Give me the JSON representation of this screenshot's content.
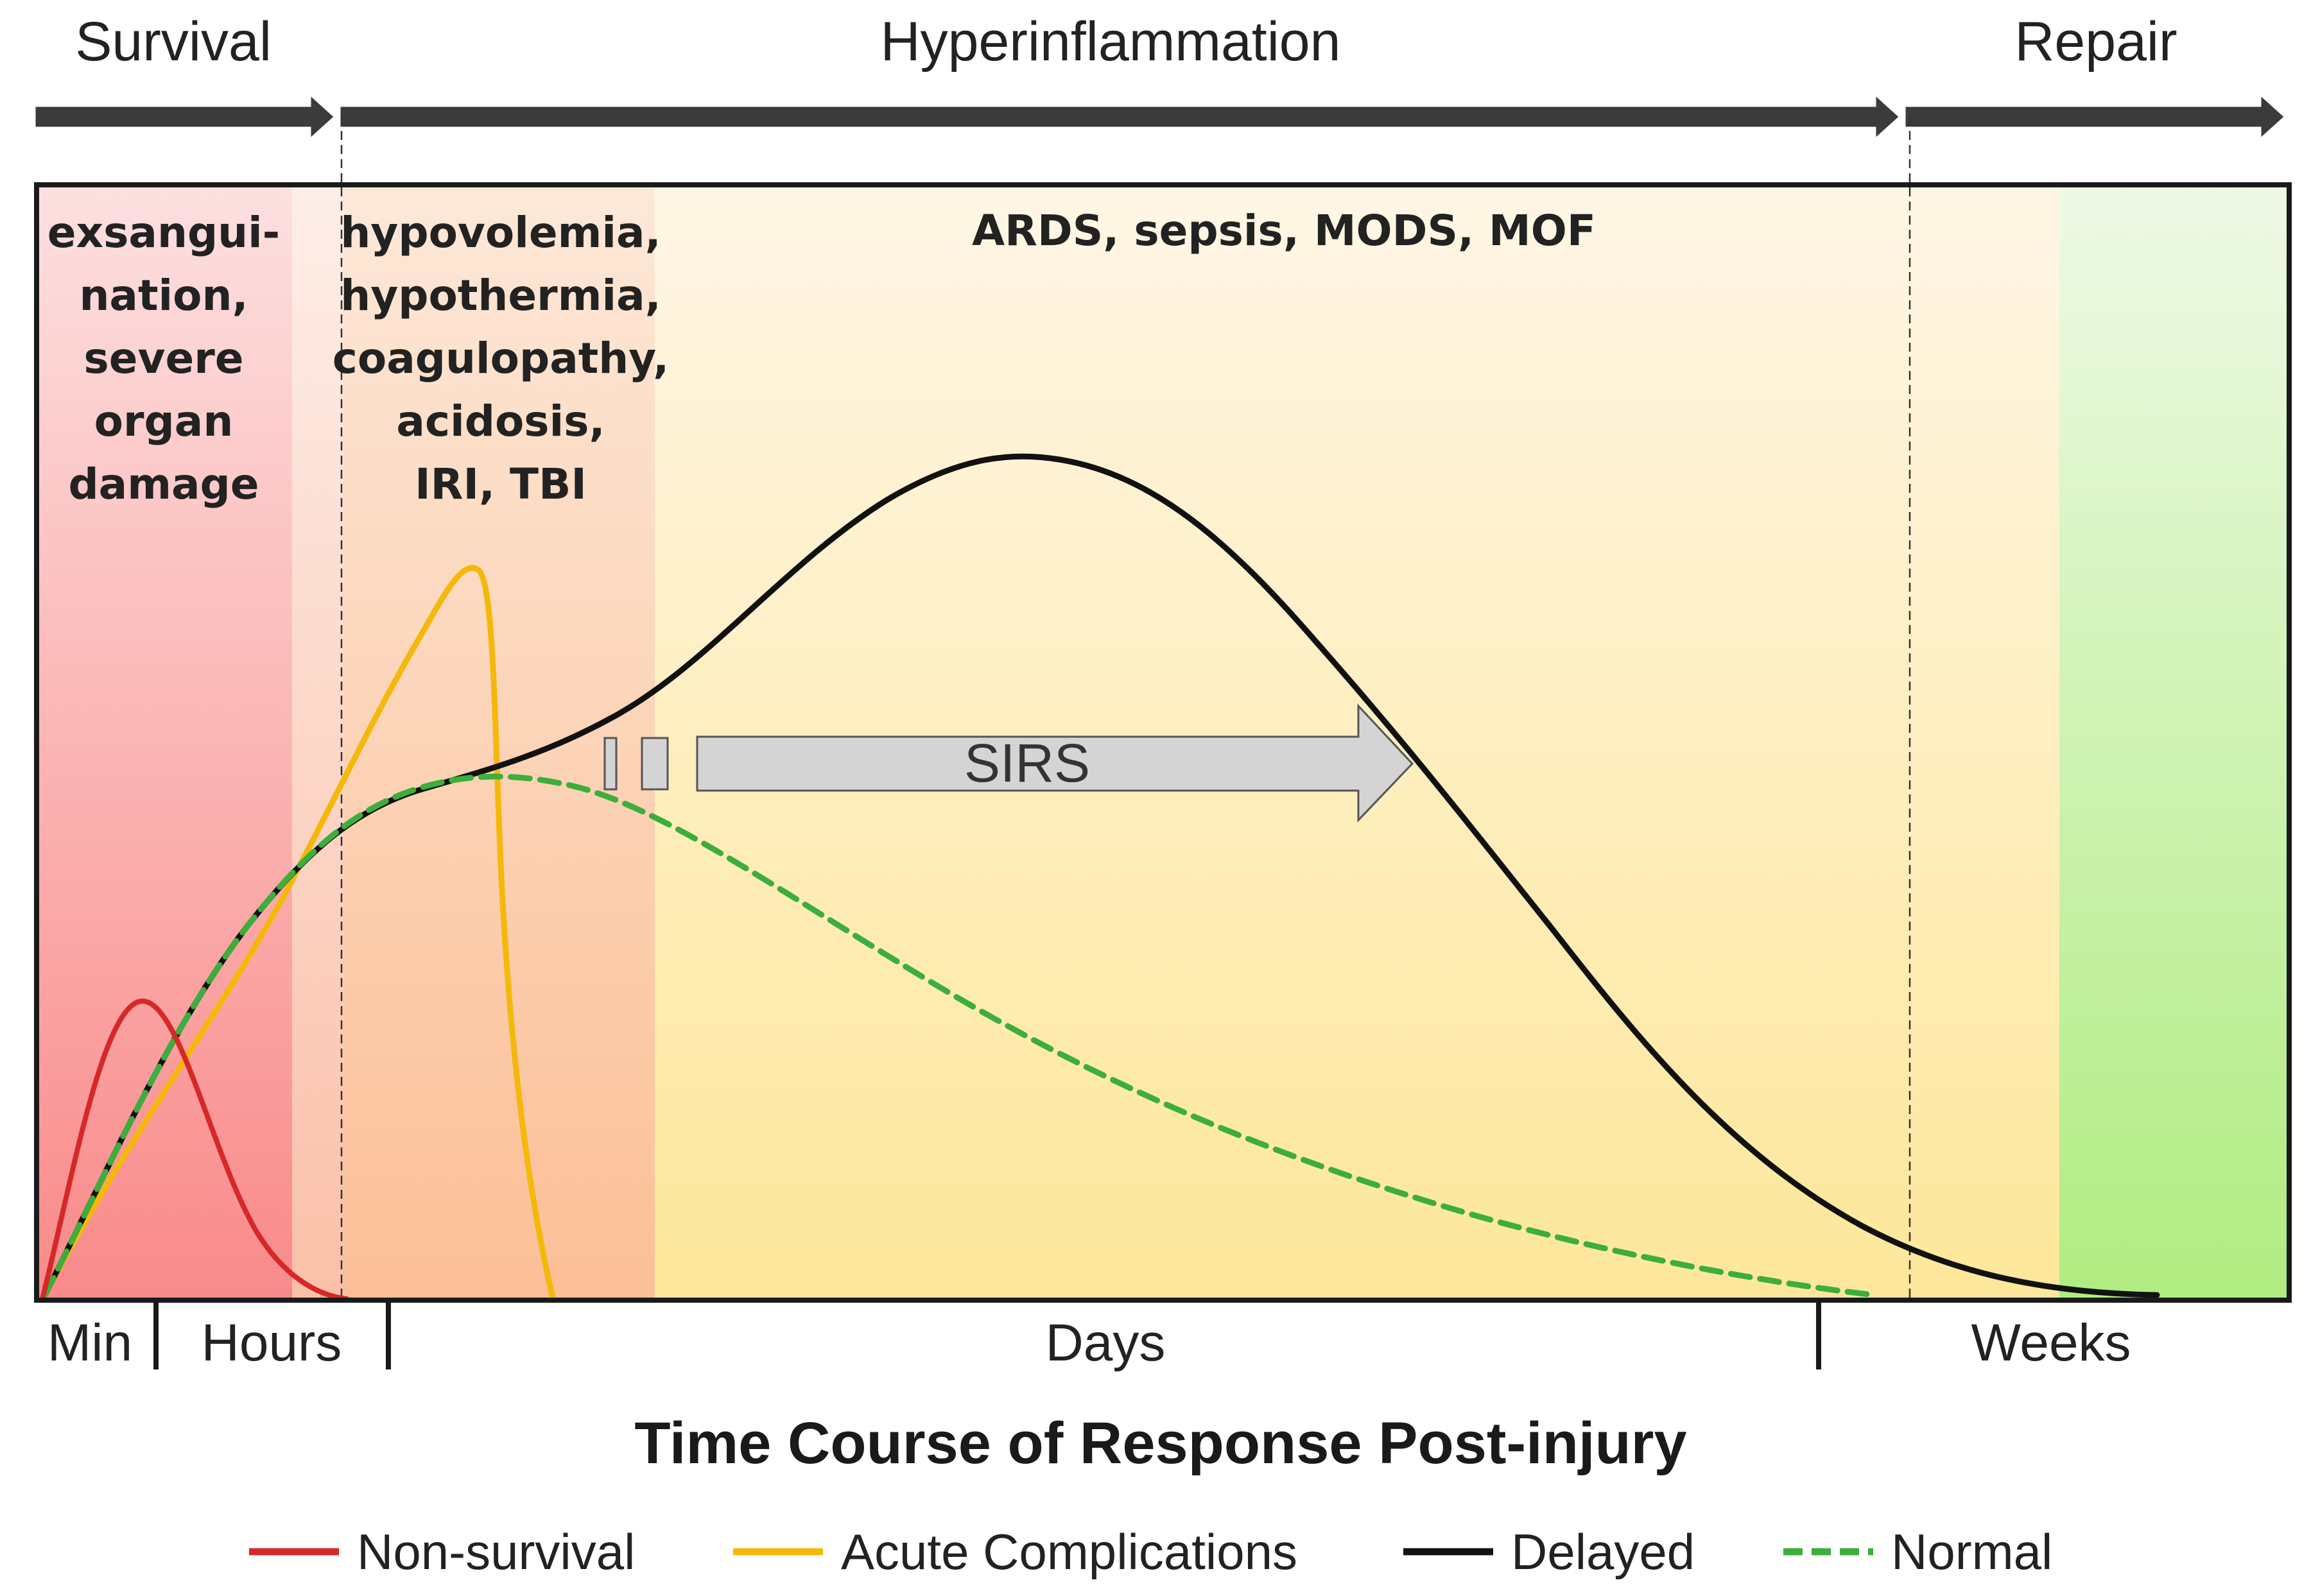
{
  "phases": {
    "survival": "Survival",
    "hyperinflammation": "Hyperinflammation",
    "repair": "Repair"
  },
  "zones": {
    "survival_conditions": [
      "exsangui-",
      "nation,",
      "severe",
      "organ",
      "damage"
    ],
    "acute_conditions": [
      "hypovolemia,",
      "hypothermia,",
      "coagulopathy,",
      "acidosis,",
      "IRI, TBI"
    ],
    "delayed_conditions": "ARDS, sepsis, MODS, MOF"
  },
  "sirs_label": "SIRS",
  "time_axis": {
    "segments": [
      "Min",
      "Hours",
      "Days",
      "Weeks"
    ]
  },
  "title": "Time Course of Response Post-injury",
  "legend": [
    {
      "label": "Non-survival",
      "color": "#d62828",
      "style": "solid"
    },
    {
      "label": "Acute Complications",
      "color": "#f5b80a",
      "style": "solid"
    },
    {
      "label": "Delayed",
      "color": "#111111",
      "style": "solid"
    },
    {
      "label": "Normal",
      "color": "#3cae3c",
      "style": "dashed"
    }
  ],
  "colors": {
    "survival_zone": "#f98a8a",
    "acute_zone": "#fbbf96",
    "hyper_zone": "#fde89a",
    "repair_zone": "#b3ee85"
  }
}
